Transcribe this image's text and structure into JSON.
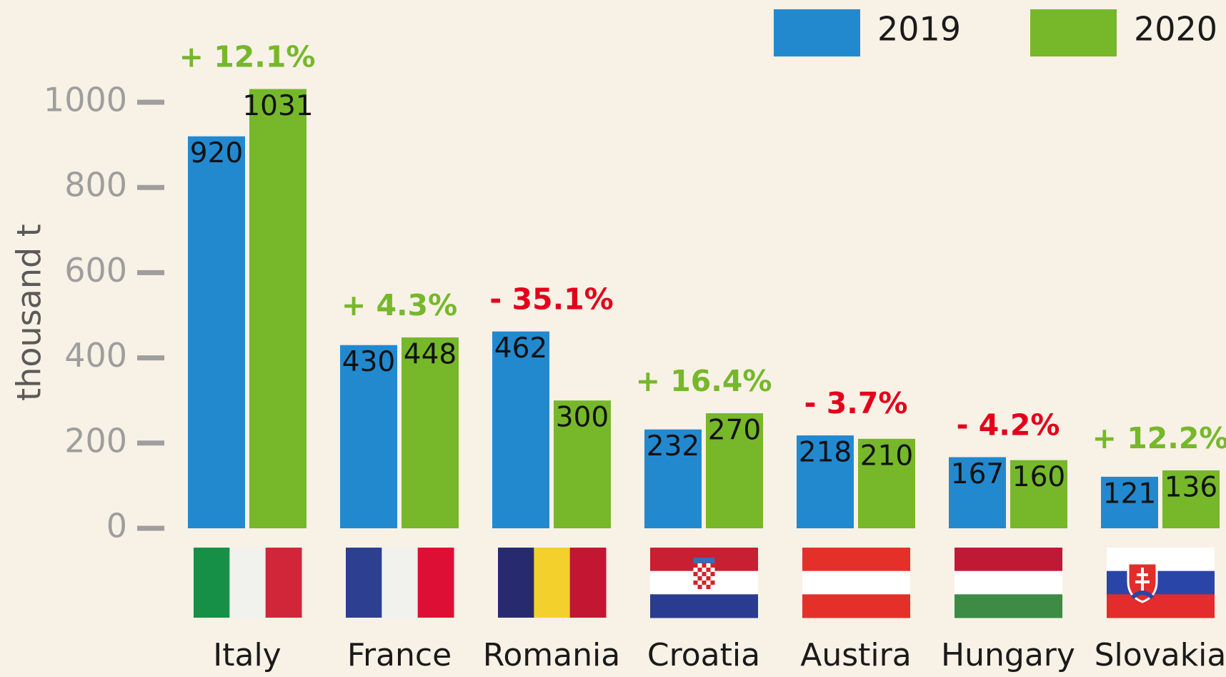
{
  "chart_data": {
    "type": "bar",
    "y_label": "thousand t",
    "categories": [
      "Italy",
      "France",
      "Romania",
      "Croatia",
      "Austira",
      "Hungary",
      "Slovakia"
    ],
    "series": [
      {
        "name": "2019",
        "color": "#2389cf",
        "values": [
          920,
          430,
          462,
          232,
          218,
          167,
          121
        ]
      },
      {
        "name": "2020",
        "color": "#76b82a",
        "values": [
          1031,
          448,
          300,
          270,
          210,
          160,
          136
        ]
      }
    ],
    "annotations": [
      {
        "text": "+ 12.1%",
        "color": "#76b82a"
      },
      {
        "text": "+ 4.3%",
        "color": "#76b82a"
      },
      {
        "text": "- 35.1%",
        "color": "#e3001b"
      },
      {
        "text": "+ 16.4%",
        "color": "#76b82a"
      },
      {
        "text": "- 3.7%",
        "color": "#e3001b"
      },
      {
        "text": "- 4.2%",
        "color": "#e3001b"
      },
      {
        "text": "+ 12.2%",
        "color": "#76b82a"
      }
    ],
    "ylim": [
      0,
      1000
    ],
    "yticks": [
      0,
      200,
      400,
      600,
      800,
      1000
    ],
    "legend": "top-right"
  }
}
